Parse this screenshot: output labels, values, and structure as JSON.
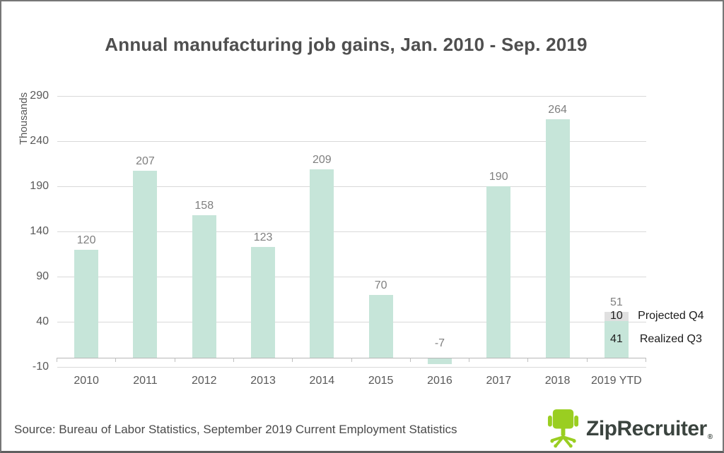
{
  "title": "Annual manufacturing job gains, Jan. 2010 - Sep. 2019",
  "chart_data": {
    "type": "bar",
    "stacked": true,
    "title": "Annual manufacturing job gains, Jan. 2010 - Sep. 2019",
    "ylabel": "Thousands",
    "yticks": [
      290,
      240,
      190,
      140,
      90,
      40,
      -10
    ],
    "ylim": [
      -10,
      290
    ],
    "grid": true,
    "legend_position": "none",
    "categories": [
      "2010",
      "2011",
      "2012",
      "2013",
      "2014",
      "2015",
      "2016",
      "2017",
      "2018",
      "2019 YTD"
    ],
    "series": [
      {
        "name": "Realized Q3",
        "color": "#c6e5d9",
        "values": [
          120,
          207,
          158,
          123,
          209,
          70,
          -7,
          190,
          264,
          41
        ]
      },
      {
        "name": "Projected Q4",
        "color": "#e0e0e0",
        "values": [
          0,
          0,
          0,
          0,
          0,
          0,
          0,
          0,
          0,
          10
        ]
      }
    ],
    "bar_value_labels": [
      "120",
      "207",
      "158",
      "123",
      "209",
      "70",
      "-7",
      "190",
      "264",
      "51"
    ],
    "segment_labels": [
      {
        "category_index": 9,
        "series_index": 1,
        "text": "10"
      },
      {
        "category_index": 9,
        "series_index": 0,
        "text": "41"
      }
    ],
    "side_annotations": [
      {
        "category_index": 9,
        "series_index": 1,
        "text": "Projected Q4"
      },
      {
        "category_index": 9,
        "series_index": 0,
        "text": "Realized Q3"
      }
    ]
  },
  "source_note": "Source: Bureau of Labor Statistics, September 2019 Current Employment Statistics",
  "logo": {
    "brand": "ZipRecruiter",
    "registered_mark": "®",
    "chair_color": "#9ace21",
    "text_color": "#3b443f"
  },
  "colors": {
    "bar_green": "#c6e5d9",
    "projected_gray": "#e0e0e0",
    "gridline": "#d9d9d9",
    "axis_line": "#b7b7b7",
    "tick_text": "#595959",
    "value_label_text": "#7f7f7f",
    "black_label_text": "#1f1f1f",
    "title_text": "#4f4f4f"
  }
}
